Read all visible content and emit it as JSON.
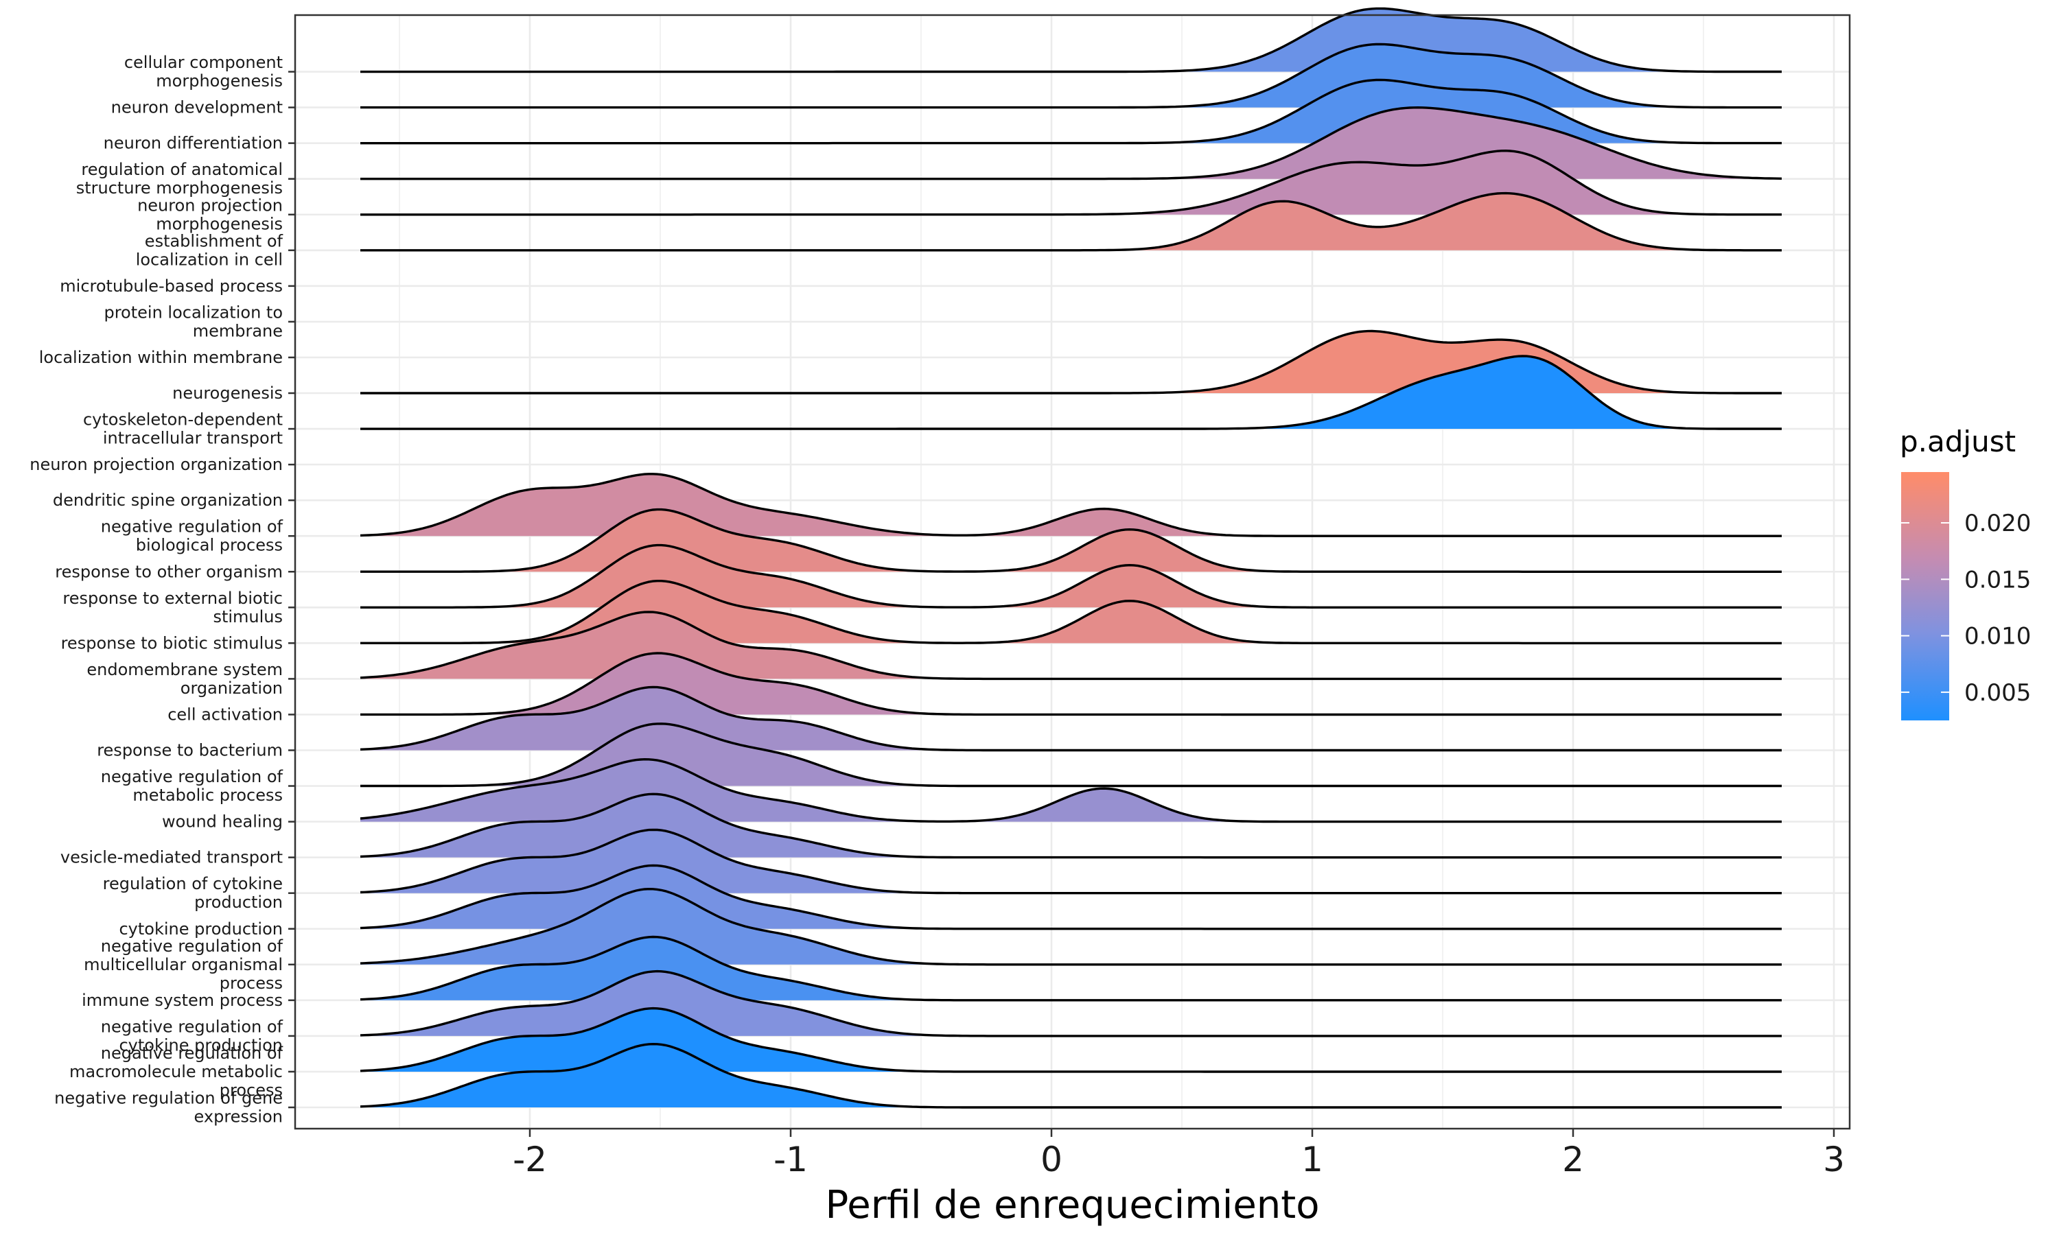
{
  "chart_data": {
    "type": "ridgeline",
    "xlabel": "Perfil de enrequecimiento",
    "xlim": [
      -3.0,
      3.05
    ],
    "x_ticks": [
      "-2",
      "-1",
      "0",
      "1",
      "2",
      "3"
    ],
    "x_tick_values": [
      -2,
      -1,
      0,
      1,
      2,
      3
    ],
    "curve_range": [
      -2.65,
      2.8
    ],
    "grid": true,
    "legend": {
      "title": "p.adjust",
      "position": "right",
      "tick_labels": [
        "0.020",
        "0.015",
        "0.010",
        "0.005"
      ],
      "tick_values": [
        0.02,
        0.015,
        0.01,
        0.005
      ],
      "range": [
        0.0025,
        0.0245
      ],
      "color_low": "#1E90FF",
      "color_high": "#FF8C69"
    },
    "series": [
      {
        "name": "cellular component morphogenesis",
        "p_adjust": 0.0085,
        "peaks": [
          {
            "mu": 1.22,
            "sd": 0.25,
            "h": 1.0
          },
          {
            "mu": 1.75,
            "sd": 0.22,
            "h": 0.72
          }
        ]
      },
      {
        "name": "neuron development",
        "p_adjust": 0.0068,
        "peaks": [
          {
            "mu": 1.22,
            "sd": 0.25,
            "h": 1.0
          },
          {
            "mu": 1.75,
            "sd": 0.22,
            "h": 0.72
          }
        ]
      },
      {
        "name": "neuron differentiation",
        "p_adjust": 0.0068,
        "peaks": [
          {
            "mu": 1.22,
            "sd": 0.25,
            "h": 1.0
          },
          {
            "mu": 1.75,
            "sd": 0.22,
            "h": 0.72
          }
        ]
      },
      {
        "name": "regulation of anatomical structure morphogenesis",
        "p_adjust": 0.016,
        "peaks": [
          {
            "mu": 1.3,
            "sd": 0.28,
            "h": 1.0
          },
          {
            "mu": 1.85,
            "sd": 0.3,
            "h": 0.75
          }
        ]
      },
      {
        "name": "neuron projection morphogenesis",
        "p_adjust": 0.0165,
        "peaks": [
          {
            "mu": 1.15,
            "sd": 0.3,
            "h": 0.85
          },
          {
            "mu": 1.78,
            "sd": 0.22,
            "h": 0.95
          }
        ]
      },
      {
        "name": "establishment of localization in cell",
        "p_adjust": 0.021,
        "peaks": [
          {
            "mu": 0.88,
            "sd": 0.2,
            "h": 0.8
          },
          {
            "mu": 1.55,
            "sd": 0.25,
            "h": 0.45
          },
          {
            "mu": 1.82,
            "sd": 0.22,
            "h": 0.65
          }
        ]
      },
      {
        "name": "microtubule-based process",
        "p_adjust": 0.02,
        "peaks": []
      },
      {
        "name": "protein localization to membrane",
        "p_adjust": 0.02,
        "peaks": []
      },
      {
        "name": "localization within membrane",
        "p_adjust": 0.0225,
        "peaks": [
          {
            "mu": 1.2,
            "sd": 0.25,
            "h": 1.0
          },
          {
            "mu": 1.78,
            "sd": 0.22,
            "h": 0.8
          }
        ]
      },
      {
        "name": "neurogenesis",
        "p_adjust": 0.0025,
        "peaks": [
          {
            "mu": 1.5,
            "sd": 0.25,
            "h": 0.8
          },
          {
            "mu": 1.88,
            "sd": 0.18,
            "h": 0.9
          }
        ]
      },
      {
        "name": "cytoskeleton-dependent intracellular transport",
        "p_adjust": 0.02,
        "peaks": []
      },
      {
        "name": "neuron projection organization",
        "p_adjust": 0.02,
        "peaks": []
      },
      {
        "name": "dendritic spine organization",
        "p_adjust": 0.0185,
        "peaks": [
          {
            "mu": -2.0,
            "sd": 0.22,
            "h": 0.72
          },
          {
            "mu": -1.52,
            "sd": 0.2,
            "h": 0.9
          },
          {
            "mu": -1.05,
            "sd": 0.25,
            "h": 0.35
          },
          {
            "mu": 0.2,
            "sd": 0.18,
            "h": 0.45
          }
        ]
      },
      {
        "name": "negative regulation of biological process",
        "p_adjust": 0.021,
        "peaks": [
          {
            "mu": -1.52,
            "sd": 0.2,
            "h": 1.0
          },
          {
            "mu": -1.05,
            "sd": 0.2,
            "h": 0.45
          },
          {
            "mu": 0.3,
            "sd": 0.18,
            "h": 0.7
          }
        ]
      },
      {
        "name": "response to other organism",
        "p_adjust": 0.021,
        "peaks": [
          {
            "mu": -1.52,
            "sd": 0.2,
            "h": 1.0
          },
          {
            "mu": -1.05,
            "sd": 0.2,
            "h": 0.45
          },
          {
            "mu": 0.3,
            "sd": 0.18,
            "h": 0.7
          }
        ]
      },
      {
        "name": "response to external biotic stimulus",
        "p_adjust": 0.021,
        "peaks": [
          {
            "mu": -1.52,
            "sd": 0.2,
            "h": 1.0
          },
          {
            "mu": -1.05,
            "sd": 0.2,
            "h": 0.45
          },
          {
            "mu": 0.3,
            "sd": 0.18,
            "h": 0.7
          }
        ]
      },
      {
        "name": "response to biotic stimulus",
        "p_adjust": 0.02,
        "peaks": []
      },
      {
        "name": "endomembrane system organization",
        "p_adjust": 0.0195,
        "peaks": [
          {
            "mu": -2.0,
            "sd": 0.25,
            "h": 0.55
          },
          {
            "mu": -1.52,
            "sd": 0.2,
            "h": 1.0
          },
          {
            "mu": -1.0,
            "sd": 0.2,
            "h": 0.45
          }
        ]
      },
      {
        "name": "cell activation",
        "p_adjust": 0.0165,
        "peaks": [
          {
            "mu": -1.52,
            "sd": 0.22,
            "h": 1.0
          },
          {
            "mu": -1.0,
            "sd": 0.2,
            "h": 0.45
          }
        ]
      },
      {
        "name": "response to bacterium",
        "p_adjust": 0.0135,
        "peaks": [
          {
            "mu": -2.05,
            "sd": 0.22,
            "h": 0.55
          },
          {
            "mu": -1.52,
            "sd": 0.2,
            "h": 1.0
          },
          {
            "mu": -1.0,
            "sd": 0.2,
            "h": 0.45
          }
        ]
      },
      {
        "name": "negative regulation of metabolic process",
        "p_adjust": 0.0135,
        "peaks": [
          {
            "mu": -1.52,
            "sd": 0.22,
            "h": 1.0
          },
          {
            "mu": -1.05,
            "sd": 0.2,
            "h": 0.45
          }
        ]
      },
      {
        "name": "wound healing",
        "p_adjust": 0.0125,
        "peaks": [
          {
            "mu": -2.0,
            "sd": 0.3,
            "h": 0.55
          },
          {
            "mu": -1.52,
            "sd": 0.2,
            "h": 0.85
          },
          {
            "mu": -1.05,
            "sd": 0.2,
            "h": 0.3
          },
          {
            "mu": 0.2,
            "sd": 0.18,
            "h": 0.55
          }
        ]
      },
      {
        "name": "vesicle-mediated transport",
        "p_adjust": 0.0115,
        "peaks": [
          {
            "mu": -2.05,
            "sd": 0.22,
            "h": 0.55
          },
          {
            "mu": -1.52,
            "sd": 0.2,
            "h": 1.0
          },
          {
            "mu": -1.05,
            "sd": 0.2,
            "h": 0.3
          }
        ]
      },
      {
        "name": "regulation of cytokine production",
        "p_adjust": 0.0105,
        "peaks": [
          {
            "mu": -2.05,
            "sd": 0.22,
            "h": 0.55
          },
          {
            "mu": -1.52,
            "sd": 0.2,
            "h": 1.0
          },
          {
            "mu": -1.05,
            "sd": 0.2,
            "h": 0.3
          }
        ]
      },
      {
        "name": "cytokine production",
        "p_adjust": 0.0095,
        "peaks": [
          {
            "mu": -2.05,
            "sd": 0.22,
            "h": 0.55
          },
          {
            "mu": -1.52,
            "sd": 0.2,
            "h": 1.0
          },
          {
            "mu": -1.05,
            "sd": 0.2,
            "h": 0.3
          }
        ]
      },
      {
        "name": "negative regulation of multicellular organismal process",
        "p_adjust": 0.0085,
        "peaks": [
          {
            "mu": -1.9,
            "sd": 0.3,
            "h": 0.45
          },
          {
            "mu": -1.52,
            "sd": 0.2,
            "h": 1.0
          },
          {
            "mu": -1.05,
            "sd": 0.22,
            "h": 0.45
          }
        ]
      },
      {
        "name": "immune system process",
        "p_adjust": 0.006,
        "peaks": [
          {
            "mu": -2.05,
            "sd": 0.22,
            "h": 0.55
          },
          {
            "mu": -1.52,
            "sd": 0.2,
            "h": 1.0
          },
          {
            "mu": -1.05,
            "sd": 0.2,
            "h": 0.3
          }
        ]
      },
      {
        "name": "negative regulation of cytokine production",
        "p_adjust": 0.0105,
        "peaks": [
          {
            "mu": -2.05,
            "sd": 0.22,
            "h": 0.45
          },
          {
            "mu": -1.52,
            "sd": 0.2,
            "h": 1.0
          },
          {
            "mu": -1.05,
            "sd": 0.22,
            "h": 0.45
          }
        ]
      },
      {
        "name": "negative regulation of macromolecule metabolic process",
        "p_adjust": 0.0025,
        "peaks": [
          {
            "mu": -2.05,
            "sd": 0.22,
            "h": 0.55
          },
          {
            "mu": -1.52,
            "sd": 0.2,
            "h": 1.0
          },
          {
            "mu": -1.05,
            "sd": 0.2,
            "h": 0.3
          }
        ]
      },
      {
        "name": "negative regulation of gene expression",
        "p_adjust": 0.0025,
        "peaks": [
          {
            "mu": -2.05,
            "sd": 0.22,
            "h": 0.55
          },
          {
            "mu": -1.52,
            "sd": 0.2,
            "h": 1.0
          },
          {
            "mu": -1.05,
            "sd": 0.2,
            "h": 0.3
          }
        ]
      }
    ],
    "y_labels": [
      [
        "cellular component",
        "morphogenesis"
      ],
      [
        "neuron development"
      ],
      [
        "neuron differentiation"
      ],
      [
        "regulation of anatomical",
        "structure morphogenesis"
      ],
      [
        "neuron projection",
        "morphogenesis"
      ],
      [
        "establishment of",
        "localization in cell"
      ],
      [
        "microtubule-based process"
      ],
      [
        "protein localization to",
        "membrane"
      ],
      [
        "localization within membrane"
      ],
      [
        "neurogenesis"
      ],
      [
        "cytoskeleton-dependent",
        "intracellular transport"
      ],
      [
        "neuron projection organization"
      ],
      [
        "dendritic spine organization"
      ],
      [
        "negative regulation of",
        "biological process"
      ],
      [
        "response to other organism"
      ],
      [
        "response to external biotic",
        "stimulus"
      ],
      [
        "response to biotic stimulus"
      ],
      [
        "endomembrane system",
        "organization"
      ],
      [
        "cell activation"
      ],
      [
        "response to bacterium"
      ],
      [
        "negative regulation of",
        "metabolic process"
      ],
      [
        "wound healing"
      ],
      [
        "vesicle-mediated transport"
      ],
      [
        "regulation of cytokine",
        "production"
      ],
      [
        "cytokine production"
      ],
      [
        "negative regulation of",
        "multicellular organismal",
        "process"
      ],
      [
        "immune system process"
      ],
      [
        "negative regulation of",
        "cytokine production"
      ],
      [
        "negative regulation of",
        "macromolecule metabolic",
        "process"
      ],
      [
        "negative regulation of gene",
        "expression"
      ]
    ],
    "rows_bottom_to_top": [
      {
        "label_index": 29,
        "series_index": 29
      },
      {
        "label_index": 28,
        "series_index": 28
      },
      {
        "label_index": 27,
        "series_index": 27
      },
      {
        "label_index": 26,
        "series_index": 26
      },
      {
        "label_index": 25,
        "series_index": 25
      },
      {
        "label_index": 24,
        "series_index": 24
      },
      {
        "label_index": 23,
        "series_index": 23
      },
      {
        "label_index": 22,
        "series_index": 22
      },
      {
        "label_index": 21,
        "series_index": 21
      },
      {
        "label_index": 20,
        "series_index": 20
      },
      {
        "label_index": 19,
        "series_index": 19
      },
      {
        "label_index": 18,
        "series_index": 18
      },
      {
        "label_index": 17,
        "series_index": 17
      },
      {
        "label_index": 16,
        "series_index": 15
      },
      {
        "label_index": 15,
        "series_index": 14
      },
      {
        "label_index": 14,
        "series_index": 13
      },
      {
        "label_index": 13,
        "series_index": 12
      },
      {
        "label_index": 12,
        "series_index": null
      },
      {
        "label_index": 11,
        "series_index": null
      },
      {
        "label_index": 10,
        "series_index": 9
      },
      {
        "label_index": 9,
        "series_index": 8
      },
      {
        "label_index": 8,
        "series_index": null
      },
      {
        "label_index": 7,
        "series_index": null
      },
      {
        "label_index": 6,
        "series_index": null
      },
      {
        "label_index": 5,
        "series_index": 5
      },
      {
        "label_index": 4,
        "series_index": 4
      },
      {
        "label_index": 3,
        "series_index": 3
      },
      {
        "label_index": 2,
        "series_index": 2
      },
      {
        "label_index": 1,
        "series_index": 1
      },
      {
        "label_index": 0,
        "series_index": 0
      }
    ]
  }
}
